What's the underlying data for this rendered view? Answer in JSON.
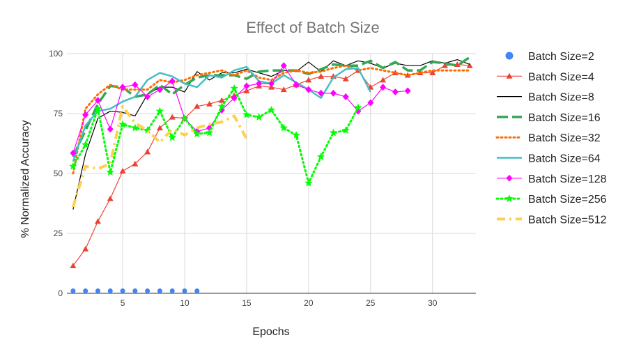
{
  "chart_data": {
    "type": "line",
    "title": "Effect of Batch Size",
    "xlabel": "Epochs",
    "ylabel": "% Normalized Accuracy",
    "xlim": [
      0.5,
      33.5
    ],
    "ylim": [
      0,
      100
    ],
    "x_ticks": [
      5,
      10,
      15,
      20,
      25,
      30
    ],
    "y_ticks": [
      0,
      25,
      50,
      75,
      100
    ],
    "grid": true,
    "legend_position": "right",
    "series": [
      {
        "name": "Batch Size=2",
        "color": "#4285f4",
        "line": "none",
        "marker": "circle",
        "x": [
          1,
          2,
          3,
          4,
          5,
          6,
          7,
          8,
          9,
          10,
          11
        ],
        "y": [
          1,
          1,
          1,
          1,
          1,
          1,
          1,
          1,
          1,
          1,
          1
        ]
      },
      {
        "name": "Batch Size=4",
        "color": "#ea4335",
        "line": "solid-thin",
        "marker": "triangle",
        "x": [
          1,
          2,
          3,
          4,
          5,
          6,
          7,
          8,
          9,
          10,
          11,
          12,
          13,
          14,
          15,
          16,
          17,
          18,
          19,
          20,
          21,
          22,
          23,
          24,
          25,
          26,
          27,
          28,
          29,
          30,
          31,
          32,
          33
        ],
        "y": [
          11.5,
          18.5,
          30,
          39.5,
          51,
          54,
          59,
          69,
          73.5,
          73,
          78,
          79,
          80.5,
          82.5,
          84.5,
          86.5,
          86,
          85,
          87,
          89,
          90.5,
          90.5,
          89.5,
          93,
          86,
          89,
          92,
          91,
          92,
          92,
          95,
          95.5,
          95
        ]
      },
      {
        "name": "Batch Size=8",
        "color": "#000000",
        "line": "solid-thin",
        "marker": "none",
        "x": [
          1,
          2,
          3,
          4,
          5,
          6,
          7,
          8,
          9,
          10,
          11,
          12,
          13,
          14,
          15,
          16,
          17,
          18,
          19,
          20,
          21,
          22,
          23,
          24,
          25,
          26,
          27,
          28,
          29,
          30,
          31,
          32,
          33
        ],
        "y": [
          35,
          58,
          73,
          76,
          75.5,
          74,
          83,
          86,
          86,
          84,
          92.5,
          89,
          92,
          92,
          93.5,
          92,
          90.5,
          93,
          92.5,
          96.5,
          92.5,
          97,
          95,
          97,
          96,
          94,
          96,
          95,
          95,
          97,
          96,
          97.5,
          95.5
        ]
      },
      {
        "name": "Batch Size=16",
        "color": "#34a853",
        "line": "dash",
        "marker": "none",
        "x": [
          1,
          2,
          3,
          4,
          5,
          6,
          7,
          8,
          9,
          10,
          11,
          12,
          13,
          14,
          15,
          16,
          17,
          18,
          19,
          20,
          21,
          22,
          23,
          24,
          25,
          26,
          27,
          28,
          29,
          30,
          31,
          32,
          33
        ],
        "y": [
          57,
          68,
          79,
          86.5,
          86,
          82,
          83,
          87,
          83,
          87,
          90,
          91,
          91,
          91,
          89.5,
          92.5,
          93,
          93,
          93,
          91.5,
          93.5,
          95.5,
          95,
          95,
          97,
          94,
          96.5,
          93,
          93,
          96.5,
          96,
          95,
          98.5
        ]
      },
      {
        "name": "Batch Size=32",
        "color": "#ff6d01",
        "line": "dot",
        "marker": "none",
        "x": [
          1,
          2,
          3,
          4,
          5,
          6,
          7,
          8,
          9,
          10,
          11,
          12,
          13,
          14,
          15,
          16,
          17,
          18,
          19,
          20,
          21,
          22,
          23,
          24,
          25,
          26,
          27,
          28,
          29,
          30,
          31,
          32,
          33
        ],
        "y": [
          50,
          77,
          83,
          87,
          85,
          85,
          85,
          89,
          88,
          89,
          91,
          92,
          93,
          91,
          93,
          90,
          89,
          92,
          93,
          92,
          92.5,
          94,
          95,
          93,
          94,
          93,
          92,
          91,
          92,
          93,
          93,
          93,
          93
        ]
      },
      {
        "name": "Batch Size=64",
        "color": "#46bdc6",
        "line": "solid",
        "marker": "none",
        "x": [
          1,
          2,
          3,
          4,
          5,
          6,
          7,
          8,
          9,
          10,
          11,
          12,
          13,
          14,
          15,
          16,
          17,
          18,
          19,
          20,
          21,
          22,
          23,
          24,
          25
        ],
        "y": [
          55,
          70,
          76,
          77,
          80,
          82,
          89,
          92,
          90.5,
          87.5,
          86,
          91,
          90,
          93,
          94.5,
          88.5,
          87.5,
          91,
          88,
          85,
          81.5,
          90,
          93.5,
          94,
          84
        ]
      },
      {
        "name": "Batch Size=128",
        "color": "#ff00ff",
        "line": "solid-thin",
        "marker": "diamond",
        "x": [
          1,
          2,
          3,
          4,
          5,
          6,
          7,
          8,
          9,
          10,
          11,
          12,
          13,
          14,
          15,
          16,
          17,
          18,
          19,
          20,
          21,
          22,
          23,
          24,
          25,
          26,
          27,
          28
        ],
        "y": [
          58.5,
          74.5,
          80.5,
          68.5,
          86,
          87,
          82,
          85,
          88.5,
          73,
          67.5,
          69,
          76.5,
          81.5,
          86.5,
          87.5,
          87.5,
          95,
          87,
          85,
          83.5,
          83.5,
          82,
          76,
          79.5,
          86,
          84,
          84.5
        ]
      },
      {
        "name": "Batch Size=256",
        "color": "#00ff00",
        "line": "dot",
        "marker": "star",
        "x": [
          1,
          2,
          3,
          4,
          5,
          6,
          7,
          8,
          9,
          10,
          11,
          12,
          13,
          14,
          15,
          16,
          17,
          18,
          19,
          20,
          21,
          22,
          23,
          24
        ],
        "y": [
          53,
          62,
          77,
          50.5,
          70.5,
          69,
          68,
          76,
          65,
          73,
          66.5,
          67,
          78,
          85.5,
          74.5,
          73.5,
          76.5,
          69,
          66,
          46,
          57,
          67,
          68,
          77.5
        ]
      },
      {
        "name": "Batch Size=512",
        "color": "#ffd04f",
        "line": "dash-dot",
        "marker": "none",
        "x": [
          1,
          2,
          3,
          4,
          5,
          6,
          7,
          8,
          9,
          10,
          11,
          12,
          13,
          14,
          15
        ],
        "y": [
          36,
          53,
          52,
          54,
          78,
          71,
          68,
          63,
          68.5,
          66,
          69,
          70.5,
          71.5,
          74,
          64.5
        ]
      }
    ]
  }
}
